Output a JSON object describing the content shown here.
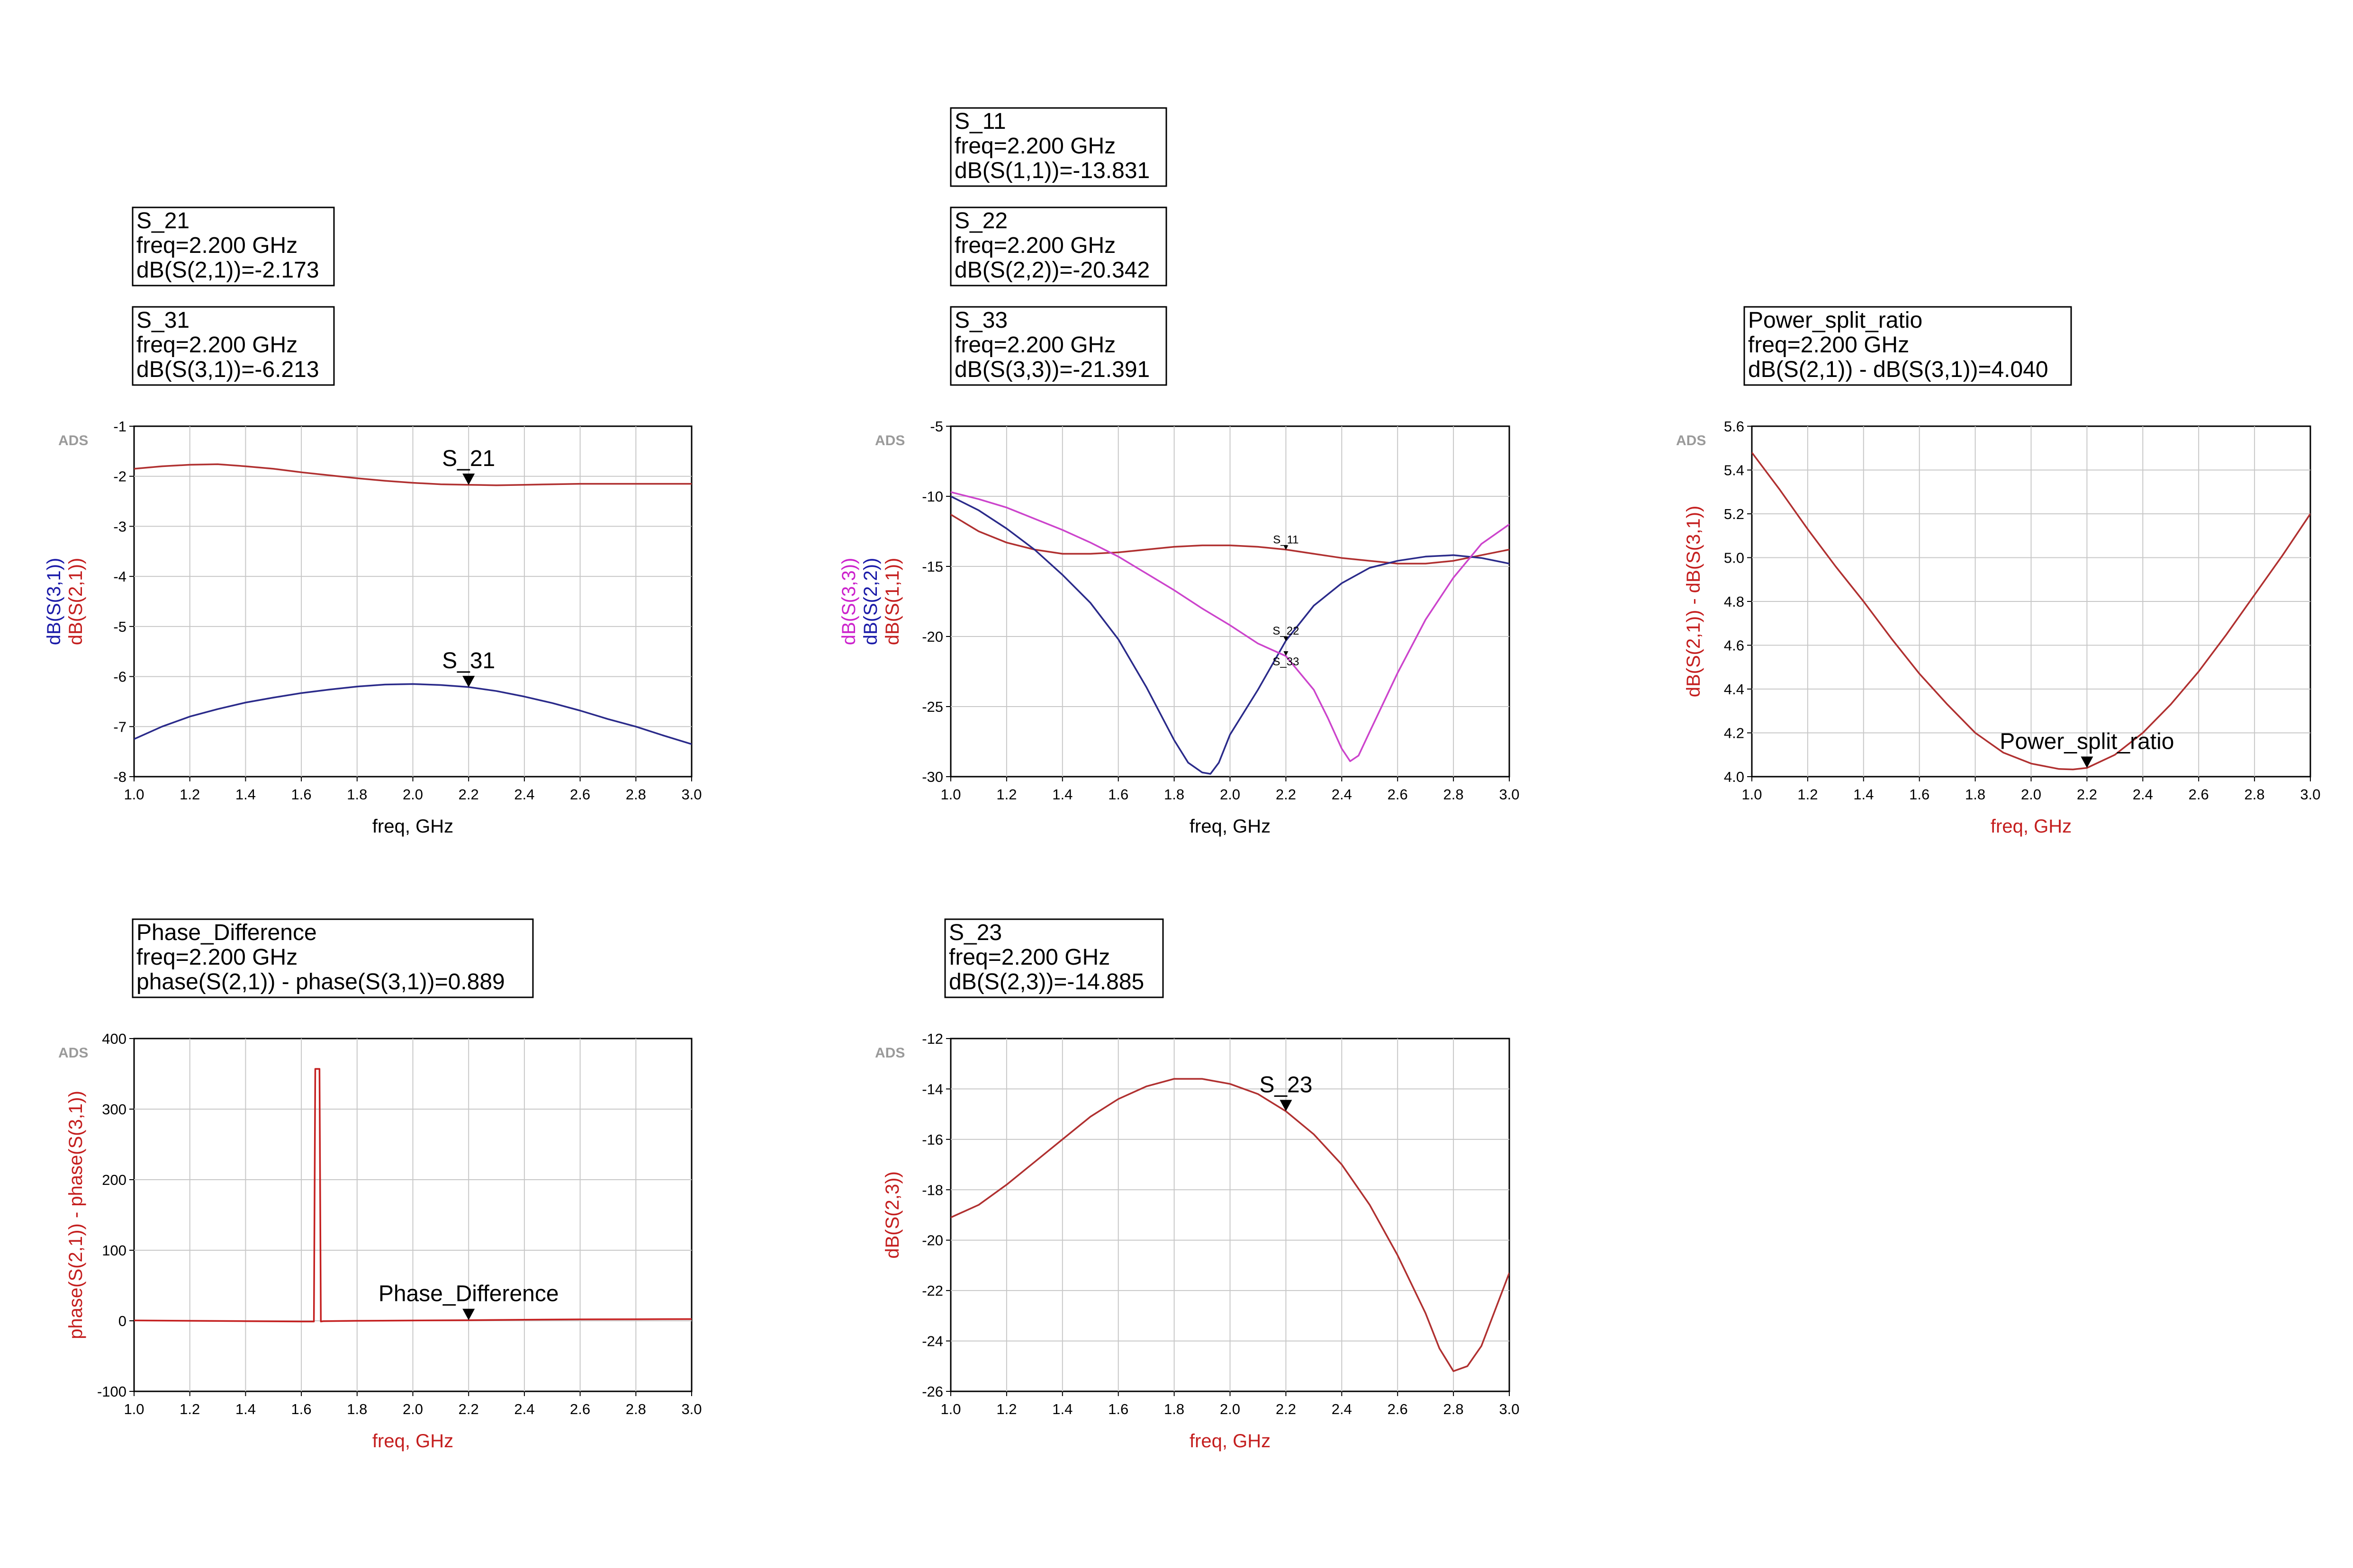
{
  "chart_data": [
    {
      "type": "line",
      "id": "s21_s31",
      "badge": "ADS",
      "xlabel": "freq, GHz",
      "xlabel_color": "#000000",
      "xlim": [
        1.0,
        3.0
      ],
      "ylim": [
        -8,
        -1
      ],
      "x_ticks": [
        "1.0",
        "1.2",
        "1.4",
        "1.6",
        "1.8",
        "2.0",
        "2.2",
        "2.4",
        "2.6",
        "2.8",
        "3.0"
      ],
      "y_ticks": [
        "-1",
        "-2",
        "-3",
        "-4",
        "-5",
        "-6",
        "-7",
        "-8"
      ],
      "y_labels": [
        {
          "text": "dB(S(3,1))",
          "color": "#1a1aa8"
        },
        {
          "text": "dB(S(2,1))",
          "color": "#c41e1e"
        }
      ],
      "series": [
        {
          "color": "#b03030",
          "x": [
            1.0,
            1.1,
            1.2,
            1.3,
            1.4,
            1.5,
            1.6,
            1.7,
            1.8,
            1.9,
            2.0,
            2.1,
            2.2,
            2.3,
            2.4,
            2.5,
            2.6,
            2.7,
            2.8,
            2.9,
            3.0
          ],
          "y": [
            -1.85,
            -1.8,
            -1.77,
            -1.76,
            -1.8,
            -1.85,
            -1.92,
            -1.98,
            -2.04,
            -2.09,
            -2.13,
            -2.16,
            -2.17,
            -2.18,
            -2.17,
            -2.16,
            -2.15,
            -2.15,
            -2.15,
            -2.15,
            -2.15
          ]
        },
        {
          "color": "#2a2a8a",
          "x": [
            1.0,
            1.1,
            1.2,
            1.3,
            1.4,
            1.5,
            1.6,
            1.7,
            1.8,
            1.9,
            2.0,
            2.1,
            2.2,
            2.3,
            2.4,
            2.5,
            2.6,
            2.7,
            2.8,
            2.9,
            3.0
          ],
          "y": [
            -7.25,
            -7.0,
            -6.8,
            -6.65,
            -6.52,
            -6.42,
            -6.33,
            -6.26,
            -6.2,
            -6.16,
            -6.15,
            -6.17,
            -6.21,
            -6.29,
            -6.4,
            -6.53,
            -6.68,
            -6.85,
            -7.0,
            -7.18,
            -7.35
          ]
        }
      ],
      "markers": [
        {
          "label": "S_21",
          "x": 2.2,
          "y": -2.173,
          "size": "large"
        },
        {
          "label": "S_31",
          "x": 2.2,
          "y": -6.213,
          "size": "large"
        }
      ],
      "marker_boxes": [
        {
          "lines": [
            "S_21",
            "freq=2.200 GHz",
            "dB(S(2,1))=-2.173"
          ]
        },
        {
          "lines": [
            "S_31",
            "freq=2.200 GHz",
            "dB(S(3,1))=-6.213"
          ]
        }
      ]
    },
    {
      "type": "line",
      "id": "reflections",
      "badge": "ADS",
      "xlabel": "freq, GHz",
      "xlabel_color": "#000000",
      "xlim": [
        1.0,
        3.0
      ],
      "ylim": [
        -30,
        -5
      ],
      "x_ticks": [
        "1.0",
        "1.2",
        "1.4",
        "1.6",
        "1.8",
        "2.0",
        "2.2",
        "2.4",
        "2.6",
        "2.8",
        "3.0"
      ],
      "y_ticks": [
        "-5",
        "-10",
        "-15",
        "-20",
        "-25",
        "-30"
      ],
      "y_labels": [
        {
          "text": "dB(S(3,3))",
          "color": "#cc22cc"
        },
        {
          "text": "dB(S(2,2))",
          "color": "#1a1aa8"
        },
        {
          "text": "dB(S(1,1))",
          "color": "#c41e1e"
        }
      ],
      "series": [
        {
          "color": "#b03030",
          "x": [
            1.0,
            1.1,
            1.2,
            1.3,
            1.4,
            1.5,
            1.6,
            1.7,
            1.8,
            1.9,
            2.0,
            2.1,
            2.2,
            2.3,
            2.4,
            2.5,
            2.6,
            2.7,
            2.8,
            2.9,
            3.0
          ],
          "y": [
            -11.3,
            -12.5,
            -13.3,
            -13.8,
            -14.1,
            -14.1,
            -14.0,
            -13.8,
            -13.6,
            -13.5,
            -13.5,
            -13.6,
            -13.8,
            -14.1,
            -14.4,
            -14.6,
            -14.8,
            -14.8,
            -14.6,
            -14.2,
            -13.8
          ]
        },
        {
          "color": "#2a2a8a",
          "x": [
            1.0,
            1.1,
            1.2,
            1.3,
            1.4,
            1.5,
            1.6,
            1.7,
            1.8,
            1.85,
            1.9,
            1.93,
            1.96,
            2.0,
            2.1,
            2.2,
            2.3,
            2.4,
            2.5,
            2.6,
            2.7,
            2.8,
            2.9,
            3.0
          ],
          "y": [
            -10.0,
            -11.0,
            -12.3,
            -13.8,
            -15.6,
            -17.6,
            -20.2,
            -23.6,
            -27.4,
            -29.0,
            -29.7,
            -29.8,
            -29.0,
            -27.0,
            -23.8,
            -20.3,
            -17.8,
            -16.2,
            -15.1,
            -14.6,
            -14.3,
            -14.2,
            -14.4,
            -14.8
          ]
        },
        {
          "color": "#cc44cc",
          "x": [
            1.0,
            1.1,
            1.2,
            1.3,
            1.4,
            1.5,
            1.6,
            1.7,
            1.8,
            1.9,
            2.0,
            2.1,
            2.2,
            2.3,
            2.35,
            2.4,
            2.43,
            2.46,
            2.5,
            2.6,
            2.7,
            2.8,
            2.9,
            3.0
          ],
          "y": [
            -9.7,
            -10.2,
            -10.8,
            -11.6,
            -12.4,
            -13.3,
            -14.3,
            -15.5,
            -16.7,
            -18.0,
            -19.2,
            -20.5,
            -21.4,
            -23.8,
            -25.8,
            -28.0,
            -28.9,
            -28.5,
            -26.8,
            -22.6,
            -18.8,
            -15.8,
            -13.4,
            -12.0
          ]
        }
      ],
      "markers": [
        {
          "label": "S_11",
          "x": 2.2,
          "y": -13.831,
          "size": "small"
        },
        {
          "label": "S_22",
          "x": 2.2,
          "y": -20.342,
          "size": "small"
        },
        {
          "label": "S_33",
          "x": 2.2,
          "y": -21.391,
          "size": "small"
        }
      ],
      "marker_boxes": [
        {
          "lines": [
            "S_11",
            "freq=2.200 GHz",
            "dB(S(1,1))=-13.831"
          ]
        },
        {
          "lines": [
            "S_22",
            "freq=2.200 GHz",
            "dB(S(2,2))=-20.342"
          ]
        },
        {
          "lines": [
            "S_33",
            "freq=2.200 GHz",
            "dB(S(3,3))=-21.391"
          ]
        }
      ]
    },
    {
      "type": "line",
      "id": "power_split",
      "badge": "ADS",
      "xlabel": "freq, GHz",
      "xlabel_color": "#c41e1e",
      "xlim": [
        1.0,
        3.0
      ],
      "ylim": [
        4.0,
        5.6
      ],
      "x_ticks": [
        "1.0",
        "1.2",
        "1.4",
        "1.6",
        "1.8",
        "2.0",
        "2.2",
        "2.4",
        "2.6",
        "2.8",
        "3.0"
      ],
      "y_ticks": [
        "5.6",
        "5.4",
        "5.2",
        "5.0",
        "4.8",
        "4.6",
        "4.4",
        "4.2",
        "4.0"
      ],
      "y_labels": [
        {
          "text": "dB(S(2,1)) - dB(S(3,1))",
          "color": "#c41e1e"
        }
      ],
      "series": [
        {
          "color": "#b03030",
          "x": [
            1.0,
            1.1,
            1.2,
            1.3,
            1.4,
            1.5,
            1.6,
            1.7,
            1.8,
            1.9,
            2.0,
            2.1,
            2.15,
            2.2,
            2.3,
            2.4,
            2.5,
            2.6,
            2.7,
            2.8,
            2.9,
            3.0
          ],
          "y": [
            5.48,
            5.31,
            5.13,
            4.96,
            4.8,
            4.63,
            4.47,
            4.33,
            4.2,
            4.11,
            4.06,
            4.035,
            4.033,
            4.04,
            4.1,
            4.2,
            4.33,
            4.48,
            4.65,
            4.83,
            5.01,
            5.2
          ]
        }
      ],
      "markers": [
        {
          "label": "Power_split_ratio",
          "x": 2.2,
          "y": 4.04,
          "size": "large"
        }
      ],
      "marker_boxes": [
        {
          "lines": [
            "Power_split_ratio",
            "freq=2.200 GHz",
            "dB(S(2,1)) - dB(S(3,1))=4.040"
          ]
        }
      ]
    },
    {
      "type": "line",
      "id": "phase_diff",
      "badge": "ADS",
      "xlabel": "freq, GHz",
      "xlabel_color": "#c41e1e",
      "xlim": [
        1.0,
        3.0
      ],
      "ylim": [
        -100,
        400
      ],
      "x_ticks": [
        "1.0",
        "1.2",
        "1.4",
        "1.6",
        "1.8",
        "2.0",
        "2.2",
        "2.4",
        "2.6",
        "2.8",
        "3.0"
      ],
      "y_ticks": [
        "400",
        "300",
        "200",
        "100",
        "0",
        "-100"
      ],
      "y_labels": [
        {
          "text": "phase(S(2,1)) - phase(S(3,1))",
          "color": "#c41e1e"
        }
      ],
      "series": [
        {
          "color": "#c42020",
          "x": [
            1.0,
            1.2,
            1.4,
            1.6,
            1.645,
            1.65,
            1.66,
            1.665,
            1.67,
            1.68,
            1.8,
            2.0,
            2.2,
            2.4,
            2.6,
            2.8,
            3.0
          ],
          "y": [
            0.5,
            0,
            -0.5,
            -1,
            -1,
            357,
            357,
            357,
            -1,
            -0.5,
            0,
            0.4,
            0.9,
            1.5,
            2,
            2.2,
            2.4
          ]
        }
      ],
      "markers": [
        {
          "label": "Phase_Difference",
          "x": 2.2,
          "y": 0.889,
          "size": "large"
        }
      ],
      "marker_boxes": [
        {
          "lines": [
            "Phase_Difference",
            "freq=2.200 GHz",
            "phase(S(2,1)) - phase(S(3,1))=0.889"
          ]
        }
      ]
    },
    {
      "type": "line",
      "id": "s23",
      "badge": "ADS",
      "xlabel": "freq, GHz",
      "xlabel_color": "#c41e1e",
      "xlim": [
        1.0,
        3.0
      ],
      "ylim": [
        -26,
        -12
      ],
      "x_ticks": [
        "1.0",
        "1.2",
        "1.4",
        "1.6",
        "1.8",
        "2.0",
        "2.2",
        "2.4",
        "2.6",
        "2.8",
        "3.0"
      ],
      "y_ticks": [
        "-12",
        "-14",
        "-16",
        "-18",
        "-20",
        "-22",
        "-24",
        "-26"
      ],
      "y_labels": [
        {
          "text": "dB(S(2,3))",
          "color": "#c41e1e"
        }
      ],
      "series": [
        {
          "color": "#b03030",
          "x": [
            1.0,
            1.1,
            1.2,
            1.3,
            1.4,
            1.5,
            1.6,
            1.7,
            1.8,
            1.9,
            2.0,
            2.1,
            2.2,
            2.3,
            2.4,
            2.5,
            2.6,
            2.7,
            2.75,
            2.8,
            2.85,
            2.9,
            3.0
          ],
          "y": [
            -19.1,
            -18.6,
            -17.8,
            -16.9,
            -16.0,
            -15.1,
            -14.4,
            -13.9,
            -13.6,
            -13.6,
            -13.8,
            -14.2,
            -14.885,
            -15.8,
            -17.0,
            -18.6,
            -20.6,
            -22.9,
            -24.3,
            -25.2,
            -25.0,
            -24.2,
            -21.3
          ]
        }
      ],
      "markers": [
        {
          "label": "S_23",
          "x": 2.2,
          "y": -14.885,
          "size": "large"
        }
      ],
      "marker_boxes": [
        {
          "lines": [
            "S_23",
            "freq=2.200 GHz",
            "dB(S(2,3))=-14.885"
          ]
        }
      ]
    }
  ]
}
